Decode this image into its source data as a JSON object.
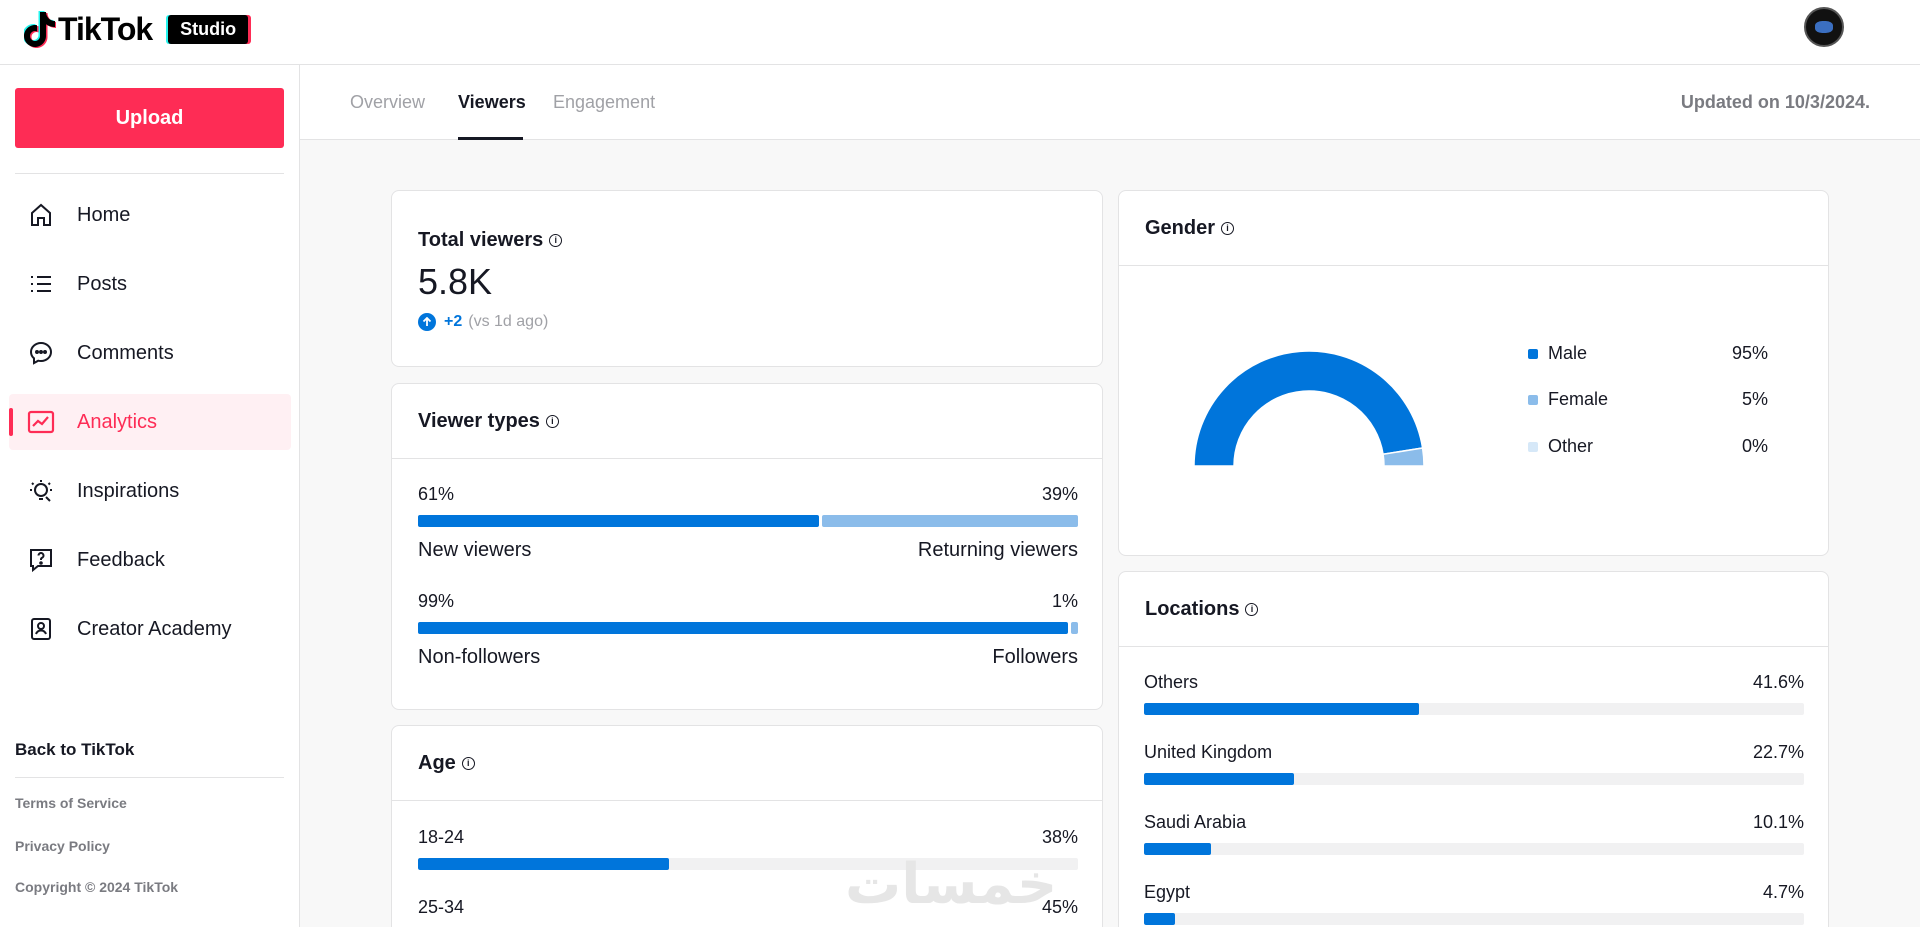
{
  "header": {
    "logo_text": "TikTok",
    "studio_badge": "Studio",
    "avatar_icon": "profile-avatar"
  },
  "sidebar": {
    "upload_label": "Upload",
    "items": [
      {
        "label": "Home",
        "icon": "home-icon"
      },
      {
        "label": "Posts",
        "icon": "list-icon"
      },
      {
        "label": "Comments",
        "icon": "comment-icon"
      },
      {
        "label": "Analytics",
        "icon": "analytics-icon",
        "active": true
      },
      {
        "label": "Inspirations",
        "icon": "lightbulb-icon"
      },
      {
        "label": "Feedback",
        "icon": "feedback-icon"
      },
      {
        "label": "Creator Academy",
        "icon": "academy-icon"
      }
    ],
    "back_link": "Back to TikTok",
    "terms": "Terms of Service",
    "privacy": "Privacy Policy",
    "copyright": "Copyright © 2024 TikTok"
  },
  "tabs": {
    "items": [
      "Overview",
      "Viewers",
      "Engagement"
    ],
    "active": "Viewers",
    "updated": "Updated on 10/3/2024."
  },
  "total_viewers": {
    "title": "Total viewers",
    "value": "5.8K",
    "delta": "+2",
    "delta_note": "(vs 1d ago)"
  },
  "viewer_types": {
    "title": "Viewer types",
    "rows": [
      {
        "left_pct": "61%",
        "right_pct": "39%",
        "left_label": "New viewers",
        "right_label": "Returning viewers",
        "left_value": 61,
        "right_value": 39
      },
      {
        "left_pct": "99%",
        "right_pct": "1%",
        "left_label": "Non-followers",
        "right_label": "Followers",
        "left_value": 99,
        "right_value": 1
      }
    ]
  },
  "age": {
    "title": "Age",
    "rows": [
      {
        "label": "18-24",
        "pct": "38%",
        "value": 38
      },
      {
        "label": "25-34",
        "pct": "45%",
        "value": 45
      }
    ]
  },
  "gender": {
    "title": "Gender",
    "items": [
      {
        "label": "Male",
        "pct": "95%",
        "value": 95,
        "color": "#0075db"
      },
      {
        "label": "Female",
        "pct": "5%",
        "value": 5,
        "color": "#8bbcea"
      },
      {
        "label": "Other",
        "pct": "0%",
        "value": 0,
        "color": "#d6e8f8"
      }
    ]
  },
  "locations": {
    "title": "Locations",
    "rows": [
      {
        "label": "Others",
        "pct": "41.6%",
        "value": 41.6
      },
      {
        "label": "United Kingdom",
        "pct": "22.7%",
        "value": 22.7
      },
      {
        "label": "Saudi Arabia",
        "pct": "10.1%",
        "value": 10.1
      },
      {
        "label": "Egypt",
        "pct": "4.7%",
        "value": 4.7
      }
    ]
  },
  "colors": {
    "brand": "#fe2c55",
    "primary_bar": "#0075db",
    "secondary_bar": "#8bbcea",
    "positive": "#0075db"
  },
  "watermark": "خمسات"
}
